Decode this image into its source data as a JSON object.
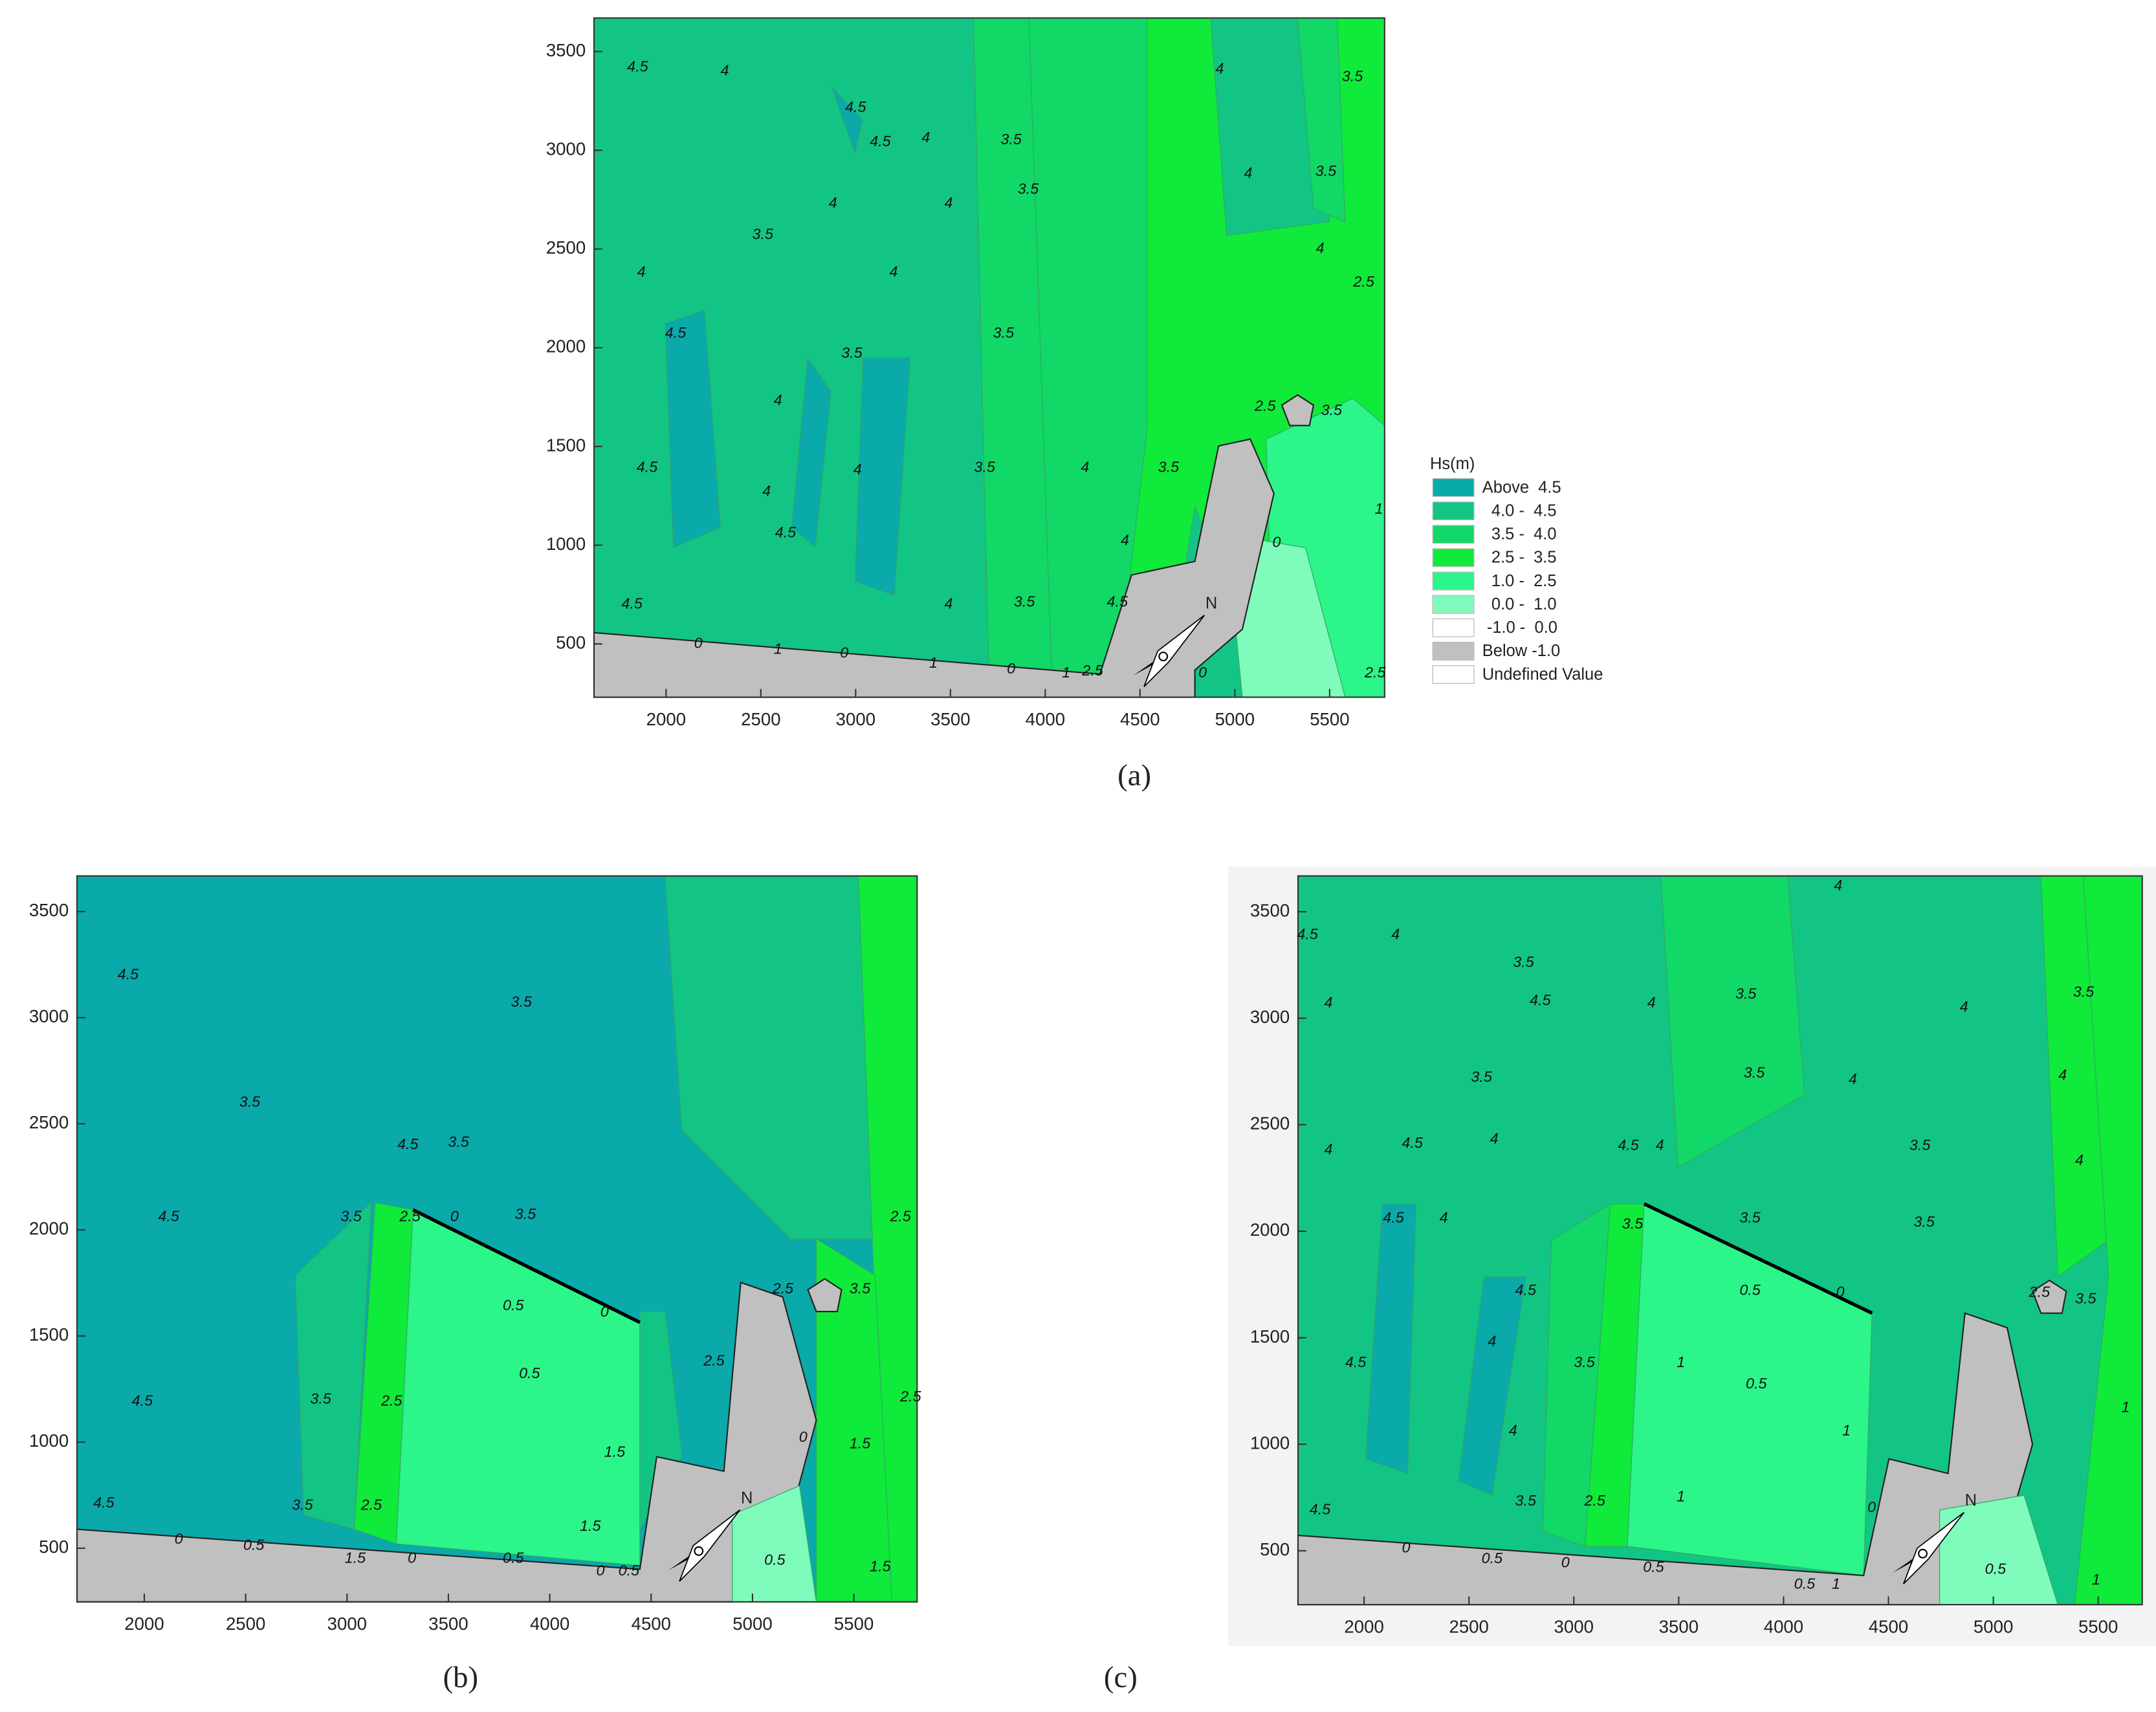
{
  "chart_data": [
    {
      "type": "contour",
      "label": "(a)",
      "north_label": "N",
      "xlim": [
        1620,
        5790
      ],
      "ylim": [
        230,
        3670
      ],
      "xticks": [
        2000,
        2500,
        3000,
        3500,
        4000,
        4500,
        5000,
        5500
      ],
      "yticks": [
        500,
        1000,
        1500,
        2000,
        2500,
        3000,
        3500
      ],
      "legend": {
        "title": "Hs(m)",
        "entries": [
          {
            "label": "Above  4.5",
            "color": "#0aa9aa"
          },
          {
            "label": "  4.0 -  4.5",
            "color": "#12c585"
          },
          {
            "label": "  3.5 -  4.0",
            "color": "#11d866"
          },
          {
            "label": "  2.5 -  3.5",
            "color": "#10ea3a"
          },
          {
            "label": "  1.0 -  2.5",
            "color": "#2cf589"
          },
          {
            "label": "  0.0 -  1.0",
            "color": "#7ffcbc"
          },
          {
            "label": " -1.0 -  0.0",
            "color": "#ffffff"
          },
          {
            "label": "Below -1.0",
            "color": "#c0c0c0"
          },
          {
            "label": "Undefined Value",
            "color": "#ffffff"
          }
        ]
      },
      "contour_labels": [
        {
          "level": 4.5,
          "x": 1850,
          "y": 3420
        },
        {
          "level": 4,
          "x": 2310,
          "y": 3400
        },
        {
          "level": 4.5,
          "x": 3000,
          "y": 3215
        },
        {
          "level": 4.5,
          "x": 3130,
          "y": 3040
        },
        {
          "level": 4,
          "x": 3370,
          "y": 3060
        },
        {
          "level": 3.5,
          "x": 3820,
          "y": 3050
        },
        {
          "level": 3.5,
          "x": 3910,
          "y": 2800
        },
        {
          "level": 4,
          "x": 2880,
          "y": 2730
        },
        {
          "level": 4,
          "x": 3490,
          "y": 2730
        },
        {
          "level": 3.5,
          "x": 2510,
          "y": 2570
        },
        {
          "level": 4,
          "x": 1870,
          "y": 2380
        },
        {
          "level": 4,
          "x": 3200,
          "y": 2380
        },
        {
          "level": 3.5,
          "x": 3780,
          "y": 2070
        },
        {
          "level": 4.5,
          "x": 2050,
          "y": 2070
        },
        {
          "level": 3.5,
          "x": 2980,
          "y": 1970
        },
        {
          "level": 4,
          "x": 2590,
          "y": 1730
        },
        {
          "level": 4.5,
          "x": 1900,
          "y": 1390
        },
        {
          "level": 4,
          "x": 3010,
          "y": 1380
        },
        {
          "level": 4,
          "x": 2530,
          "y": 1270
        },
        {
          "level": 3.5,
          "x": 3680,
          "y": 1390
        },
        {
          "level": 4,
          "x": 4210,
          "y": 1390
        },
        {
          "level": 4.5,
          "x": 2630,
          "y": 1060
        },
        {
          "level": 4,
          "x": 4420,
          "y": 1020
        },
        {
          "level": 4.5,
          "x": 1820,
          "y": 700
        },
        {
          "level": 4,
          "x": 3490,
          "y": 700
        },
        {
          "level": 3.5,
          "x": 3890,
          "y": 710
        },
        {
          "level": 4.5,
          "x": 4380,
          "y": 710
        },
        {
          "level": 3.5,
          "x": 4650,
          "y": 1390
        },
        {
          "level": 2.5,
          "x": 5160,
          "y": 1700
        },
        {
          "level": 3.5,
          "x": 5510,
          "y": 1680
        },
        {
          "level": 4,
          "x": 5450,
          "y": 2500
        },
        {
          "level": 2.5,
          "x": 5680,
          "y": 2330
        },
        {
          "level": 3.5,
          "x": 5480,
          "y": 2890
        },
        {
          "level": 4,
          "x": 5070,
          "y": 2880
        },
        {
          "level": 4,
          "x": 4920,
          "y": 3410
        },
        {
          "level": 3.5,
          "x": 5620,
          "y": 3370
        },
        {
          "level": 0,
          "x": 2170,
          "y": 500
        },
        {
          "level": 1,
          "x": 2590,
          "y": 470
        },
        {
          "level": 0,
          "x": 2940,
          "y": 450
        },
        {
          "level": 1,
          "x": 3410,
          "y": 400
        },
        {
          "level": 0,
          "x": 3820,
          "y": 370
        },
        {
          "level": 1,
          "x": 4110,
          "y": 350
        },
        {
          "level": 2.5,
          "x": 4250,
          "y": 360
        },
        {
          "level": 0,
          "x": 4830,
          "y": 350
        },
        {
          "level": 0,
          "x": 5220,
          "y": 1010
        },
        {
          "level": 2.5,
          "x": 5740,
          "y": 350
        },
        {
          "level": 1,
          "x": 5760,
          "y": 1180
        }
      ]
    },
    {
      "type": "contour",
      "label": "(b)",
      "north_label": "N",
      "xlim": [
        1668,
        5812
      ],
      "ylim": [
        247,
        3668
      ],
      "xticks": [
        2000,
        2500,
        3000,
        3500,
        4000,
        4500,
        5000,
        5500
      ],
      "yticks": [
        500,
        1000,
        1500,
        2000,
        2500,
        3000,
        3500
      ],
      "contour_labels": [
        {
          "level": 4.5,
          "x": 1920,
          "y": 3200
        },
        {
          "level": 3.5,
          "x": 3860,
          "y": 3070
        },
        {
          "level": 3.5,
          "x": 2520,
          "y": 2600
        },
        {
          "level": 4.5,
          "x": 3300,
          "y": 2400
        },
        {
          "level": 3.5,
          "x": 3550,
          "y": 2410
        },
        {
          "level": 4.5,
          "x": 2120,
          "y": 2060
        },
        {
          "level": 3.5,
          "x": 3020,
          "y": 2060
        },
        {
          "level": 2.5,
          "x": 3310,
          "y": 2060
        },
        {
          "level": 0,
          "x": 3530,
          "y": 2060
        },
        {
          "level": 3.5,
          "x": 3880,
          "y": 2070
        },
        {
          "level": 2.5,
          "x": 5730,
          "y": 2060
        },
        {
          "level": 0.5,
          "x": 3820,
          "y": 1640
        },
        {
          "level": 0,
          "x": 4270,
          "y": 1610
        },
        {
          "level": 0.5,
          "x": 3900,
          "y": 1320
        },
        {
          "level": 4.5,
          "x": 1990,
          "y": 1190
        },
        {
          "level": 3.5,
          "x": 2870,
          "y": 1200
        },
        {
          "level": 2.5,
          "x": 3220,
          "y": 1190
        },
        {
          "level": 2.5,
          "x": 4810,
          "y": 1380
        },
        {
          "level": 2.5,
          "x": 5150,
          "y": 1720
        },
        {
          "level": 3.5,
          "x": 5530,
          "y": 1720
        },
        {
          "level": 2.5,
          "x": 5780,
          "y": 1210
        },
        {
          "level": 1.5,
          "x": 4320,
          "y": 950
        },
        {
          "level": 1.5,
          "x": 5530,
          "y": 990
        },
        {
          "level": 1.5,
          "x": 4200,
          "y": 600
        },
        {
          "level": 4.5,
          "x": 1800,
          "y": 710
        },
        {
          "level": 0,
          "x": 2170,
          "y": 540
        },
        {
          "level": 0.5,
          "x": 2540,
          "y": 510
        },
        {
          "level": 3.5,
          "x": 2780,
          "y": 700
        },
        {
          "level": 2.5,
          "x": 3120,
          "y": 700
        },
        {
          "level": 1.5,
          "x": 3040,
          "y": 450
        },
        {
          "level": 0,
          "x": 3320,
          "y": 450
        },
        {
          "level": 0.5,
          "x": 3820,
          "y": 450
        },
        {
          "level": 0,
          "x": 4250,
          "y": 390
        },
        {
          "level": 0.5,
          "x": 4390,
          "y": 390
        },
        {
          "level": 0.5,
          "x": 5110,
          "y": 440
        },
        {
          "level": 1.5,
          "x": 5630,
          "y": 410
        },
        {
          "level": 0,
          "x": 5250,
          "y": 1020
        }
      ]
    },
    {
      "type": "contour",
      "label": "(c)",
      "north_label": "N",
      "xlim": [
        1685,
        5710
      ],
      "ylim": [
        247,
        3668
      ],
      "xticks": [
        2000,
        2500,
        3000,
        3500,
        4000,
        4500,
        5000,
        5500
      ],
      "yticks": [
        500,
        1000,
        1500,
        2000,
        2500,
        3000,
        3500
      ],
      "contour_labels": [
        {
          "level": 4.5,
          "x": 1730,
          "y": 3390
        },
        {
          "level": 4,
          "x": 2150,
          "y": 3390
        },
        {
          "level": 4,
          "x": 4260,
          "y": 3620
        },
        {
          "level": 3.5,
          "x": 2760,
          "y": 3260
        },
        {
          "level": 4.5,
          "x": 2840,
          "y": 3080
        },
        {
          "level": 4,
          "x": 3370,
          "y": 3070
        },
        {
          "level": 3.5,
          "x": 3820,
          "y": 3110
        },
        {
          "level": 4,
          "x": 4860,
          "y": 3050
        },
        {
          "level": 3.5,
          "x": 5430,
          "y": 3120
        },
        {
          "level": 4,
          "x": 1830,
          "y": 3070
        },
        {
          "level": 3.5,
          "x": 3860,
          "y": 2740
        },
        {
          "level": 4,
          "x": 4330,
          "y": 2710
        },
        {
          "level": 4,
          "x": 5330,
          "y": 2730
        },
        {
          "level": 3.5,
          "x": 2560,
          "y": 2720
        },
        {
          "level": 4,
          "x": 1830,
          "y": 2380
        },
        {
          "level": 4.5,
          "x": 2230,
          "y": 2410
        },
        {
          "level": 4,
          "x": 2620,
          "y": 2430
        },
        {
          "level": 4.5,
          "x": 3260,
          "y": 2400
        },
        {
          "level": 4,
          "x": 3410,
          "y": 2400
        },
        {
          "level": 3.5,
          "x": 4650,
          "y": 2400
        },
        {
          "level": 4,
          "x": 5410,
          "y": 2330
        },
        {
          "level": 4.5,
          "x": 2140,
          "y": 2060
        },
        {
          "level": 4,
          "x": 2380,
          "y": 2060
        },
        {
          "level": 3.5,
          "x": 3280,
          "y": 2030
        },
        {
          "level": 3.5,
          "x": 3840,
          "y": 2060
        },
        {
          "level": 3.5,
          "x": 4670,
          "y": 2040
        },
        {
          "level": 0.5,
          "x": 3840,
          "y": 1720
        },
        {
          "level": 0,
          "x": 4270,
          "y": 1710
        },
        {
          "level": 2.5,
          "x": 5220,
          "y": 1710
        },
        {
          "level": 3.5,
          "x": 5440,
          "y": 1680
        },
        {
          "level": 4.5,
          "x": 2770,
          "y": 1720
        },
        {
          "level": 4,
          "x": 2610,
          "y": 1480
        },
        {
          "level": 4.5,
          "x": 1960,
          "y": 1380
        },
        {
          "level": 3.5,
          "x": 3050,
          "y": 1380
        },
        {
          "level": 1,
          "x": 3510,
          "y": 1380
        },
        {
          "level": 0.5,
          "x": 3870,
          "y": 1280
        },
        {
          "level": 4,
          "x": 2710,
          "y": 1060
        },
        {
          "level": 1,
          "x": 4300,
          "y": 1060
        },
        {
          "level": 1,
          "x": 5630,
          "y": 1170
        },
        {
          "level": 3.5,
          "x": 2770,
          "y": 730
        },
        {
          "level": 2.5,
          "x": 3100,
          "y": 730
        },
        {
          "level": 1,
          "x": 3510,
          "y": 750
        },
        {
          "level": 0,
          "x": 4420,
          "y": 700
        },
        {
          "level": 4.5,
          "x": 1790,
          "y": 690
        },
        {
          "level": 0,
          "x": 2200,
          "y": 510
        },
        {
          "level": 0.5,
          "x": 2610,
          "y": 460
        },
        {
          "level": 0,
          "x": 2960,
          "y": 440
        },
        {
          "level": 0.5,
          "x": 3380,
          "y": 420
        },
        {
          "level": 0.5,
          "x": 4100,
          "y": 340
        },
        {
          "level": 1,
          "x": 4250,
          "y": 340
        },
        {
          "level": 0.5,
          "x": 5010,
          "y": 410
        },
        {
          "level": 1,
          "x": 5490,
          "y": 360
        }
      ]
    }
  ]
}
